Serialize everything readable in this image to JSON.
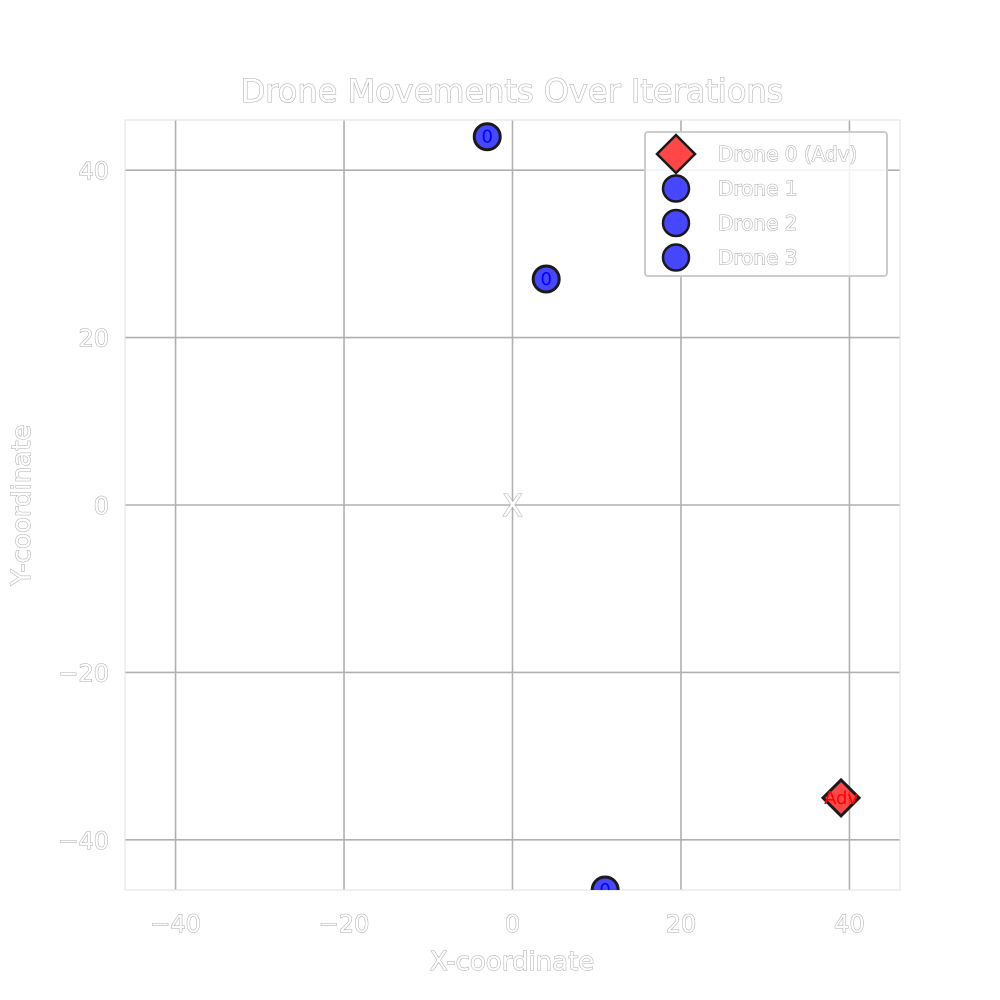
{
  "chart_data": {
    "type": "scatter",
    "title": "Drone Movements Over Iterations",
    "xlabel": "X-coordinate",
    "ylabel": "Y-coordinate",
    "xlim": [
      -46,
      46
    ],
    "ylim": [
      -46,
      46
    ],
    "xticks": [
      -40,
      -20,
      0,
      20,
      40
    ],
    "yticks": [
      -40,
      -20,
      0,
      20,
      40
    ],
    "grid": true,
    "legend_position": "top-right",
    "center_marker": {
      "x": 0,
      "y": 0,
      "label": "X"
    },
    "series": [
      {
        "name": "Drone 0 (Adv)",
        "marker": "diamond",
        "color": "#ff0000",
        "points": [
          {
            "x": 39,
            "y": -35,
            "label": "Adv"
          }
        ]
      },
      {
        "name": "Drone 1",
        "marker": "circle",
        "color": "#0000ff",
        "points": [
          {
            "x": -3,
            "y": 44,
            "label": "0"
          }
        ]
      },
      {
        "name": "Drone 2",
        "marker": "circle",
        "color": "#0000ff",
        "points": [
          {
            "x": 4,
            "y": 27,
            "label": "0"
          }
        ]
      },
      {
        "name": "Drone 3",
        "marker": "circle",
        "color": "#0000ff",
        "points": [
          {
            "x": 11,
            "y": -46,
            "label": "0"
          }
        ]
      }
    ]
  }
}
